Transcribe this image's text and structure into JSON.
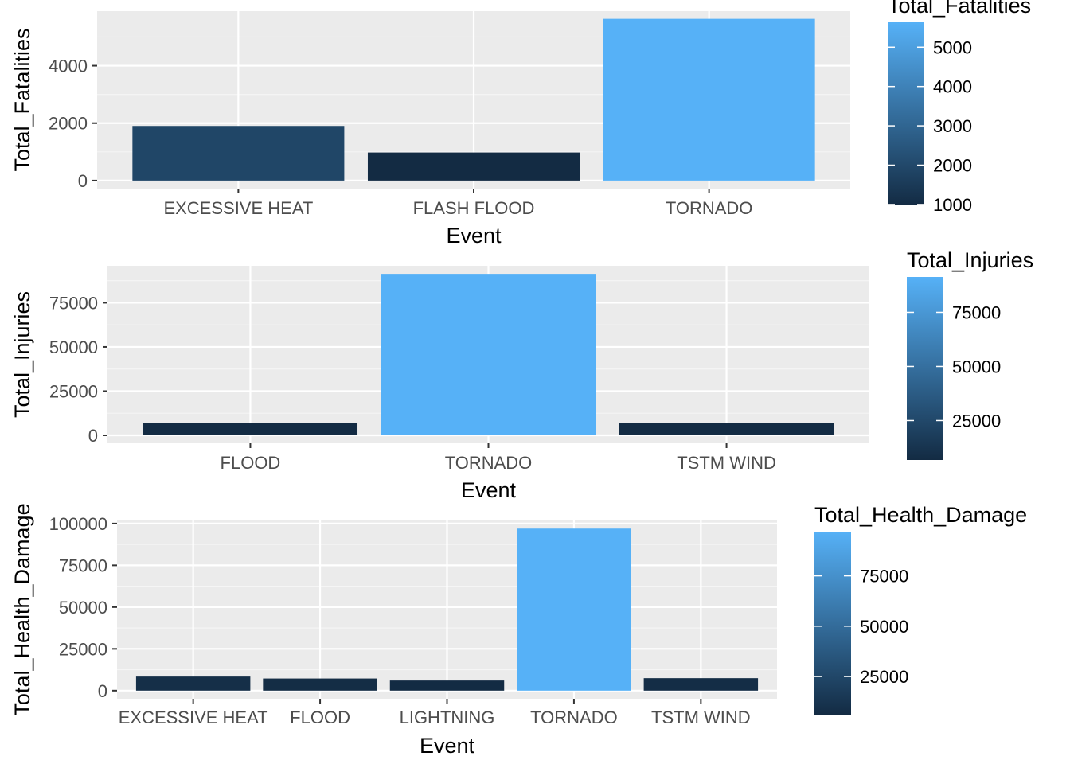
{
  "chart_data": [
    {
      "type": "bar",
      "xlabel": "Event",
      "ylabel": "Total_Fatalities",
      "categories": [
        "EXCESSIVE HEAT",
        "FLASH FLOOD",
        "TORNADO"
      ],
      "values": [
        1903,
        978,
        5633
      ],
      "ylim": [
        -280,
        5900
      ],
      "yticks": [
        0,
        2000,
        4000
      ],
      "grid": true,
      "legend": {
        "title": "Total_Fatalities",
        "position": "right",
        "ticks": [
          1000,
          2000,
          3000,
          4000,
          5000
        ],
        "range": [
          978,
          5633
        ]
      }
    },
    {
      "type": "bar",
      "xlabel": "Event",
      "ylabel": "Total_Injuries",
      "categories": [
        "FLOOD",
        "TORNADO",
        "TSTM WIND"
      ],
      "values": [
        6789,
        91346,
        6957
      ],
      "ylim": [
        -4500,
        95900
      ],
      "yticks": [
        0,
        25000,
        50000,
        75000
      ],
      "grid": true,
      "legend": {
        "title": "Total_Injuries",
        "position": "right",
        "ticks": [
          25000,
          50000,
          75000
        ],
        "range": [
          6789,
          91346
        ]
      }
    },
    {
      "type": "bar",
      "xlabel": "Event",
      "ylabel": "Total_Health_Damage",
      "categories": [
        "EXCESSIVE HEAT",
        "FLOOD",
        "LIGHTNING",
        "TORNADO",
        "TSTM WIND"
      ],
      "values": [
        8428,
        7259,
        6046,
        96979,
        7461
      ],
      "ylim": [
        -4850,
        101850
      ],
      "yticks": [
        0,
        25000,
        50000,
        75000,
        100000
      ],
      "grid": true,
      "legend": {
        "title": "Total_Health_Damage",
        "position": "right",
        "ticks": [
          25000,
          50000,
          75000
        ],
        "range": [
          6046,
          96979
        ]
      }
    }
  ],
  "colors": {
    "panel_bg": "#EBEBEB",
    "grid_major": "#FFFFFF",
    "gradient_low": "#132B43",
    "gradient_high": "#56B1F7",
    "tick_text": "#4D4D4D",
    "tick_mark": "#333333"
  }
}
